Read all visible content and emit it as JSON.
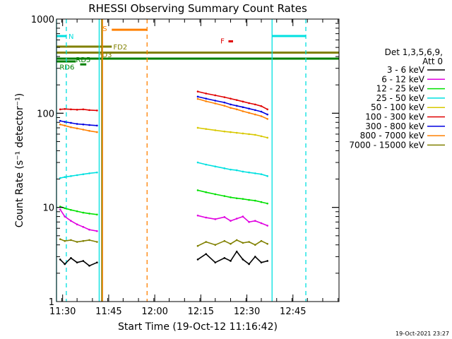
{
  "chart_data": {
    "type": "line",
    "title": "RHESSI Observing Summary Count Rates",
    "xlabel": "Start Time (19-Oct-12 11:16:42)",
    "ylabel": "Count Rate (s⁻¹ detector⁻¹)",
    "yscale": "log",
    "ylim": [
      1,
      1000
    ],
    "xlim_minutes": [
      11.3,
      103.3
    ],
    "x_ticks": [
      "11:30",
      "11:45",
      "12:00",
      "12:15",
      "12:30",
      "12:45"
    ],
    "x_tick_minutes": [
      13.3,
      28.3,
      43.3,
      58.3,
      73.3,
      88.3
    ],
    "y_ticks": [
      "1",
      "10",
      "100",
      "1000"
    ],
    "y_tick_values": [
      1,
      10,
      100,
      1000
    ],
    "grid": false,
    "legend_header": [
      "Det 1,3,5,6,9,",
      "Att 0"
    ],
    "legend_position": "right",
    "footer_date": "19-Oct-2021 23:27",
    "series": [
      {
        "name": "3 - 6 keV",
        "color": "#000000",
        "segments": [
          {
            "x": [
              12.5,
              14,
              16,
              18,
              20,
              22,
              24.5
            ],
            "y": [
              2.8,
              2.5,
              2.9,
              2.6,
              2.7,
              2.4,
              2.6
            ]
          },
          {
            "x": [
              57.3,
              60,
              63,
              66,
              68,
              70,
              72,
              74,
              76,
              78,
              80
            ],
            "y": [
              2.8,
              3.2,
              2.6,
              2.9,
              2.7,
              3.4,
              2.8,
              2.5,
              3.0,
              2.6,
              2.7
            ]
          }
        ]
      },
      {
        "name": "6 - 12 keV",
        "color": "#e000e0",
        "segments": [
          {
            "x": [
              12.5,
              14,
              16,
              18,
              20,
              22,
              24.5
            ],
            "y": [
              9.5,
              8.0,
              7.2,
              6.6,
              6.2,
              5.8,
              5.6
            ]
          },
          {
            "x": [
              57.3,
              60,
              63,
              66,
              68,
              70,
              72,
              74,
              76,
              78,
              80
            ],
            "y": [
              8.2,
              7.8,
              7.5,
              7.9,
              7.2,
              7.6,
              8.0,
              7.0,
              7.2,
              6.8,
              6.4
            ]
          }
        ]
      },
      {
        "name": "12 - 25 keV",
        "color": "#00e000",
        "segments": [
          {
            "x": [
              12.5,
              14,
              16,
              18,
              20,
              22,
              24.5
            ],
            "y": [
              10.2,
              9.8,
              9.4,
              9.1,
              8.8,
              8.6,
              8.4
            ]
          },
          {
            "x": [
              57.3,
              60,
              63,
              66,
              68,
              70,
              72,
              74,
              76,
              78,
              80
            ],
            "y": [
              15.2,
              14.5,
              13.8,
              13.2,
              12.8,
              12.5,
              12.3,
              12.0,
              11.8,
              11.4,
              11.0
            ]
          }
        ]
      },
      {
        "name": "25 - 50 keV",
        "color": "#00e0e0",
        "segments": [
          {
            "x": [
              12.5,
              14,
              16,
              18,
              20,
              22,
              24.5
            ],
            "y": [
              20.5,
              21.0,
              21.5,
              22.0,
              22.5,
              23.0,
              23.5
            ]
          },
          {
            "x": [
              57.3,
              60,
              63,
              66,
              68,
              70,
              72,
              74,
              76,
              78,
              80
            ],
            "y": [
              30.0,
              28.5,
              27.2,
              26.0,
              25.2,
              24.8,
              24.0,
              23.5,
              23.0,
              22.5,
              21.5
            ]
          }
        ]
      },
      {
        "name": "50 - 100 keV",
        "color": "#d8c800",
        "segments": [
          {
            "x": [
              57.3,
              60,
              63,
              66,
              68,
              70,
              72,
              74,
              76,
              78,
              80
            ],
            "y": [
              70.0,
              68.0,
              66.0,
              64.0,
              63.0,
              62.0,
              61.0,
              60.0,
              59.0,
              57.0,
              55.0
            ]
          }
        ]
      },
      {
        "name": "100 - 300 keV",
        "color": "#e00000",
        "segments": [
          {
            "x": [
              12.5,
              14,
              16,
              18,
              20,
              22,
              24.5
            ],
            "y": [
              110,
              111,
              110,
              109,
              110,
              108,
              107
            ]
          },
          {
            "x": [
              57.3,
              60,
              63,
              66,
              68,
              70,
              72,
              74,
              76,
              78,
              80
            ],
            "y": [
              170,
              162,
              155,
              148,
              143,
              138,
              133,
              128,
              124,
              119,
              110
            ]
          }
        ]
      },
      {
        "name": "300 - 800 keV",
        "color": "#0000e0",
        "segments": [
          {
            "x": [
              12.5,
              14,
              16,
              18,
              20,
              22,
              24.5
            ],
            "y": [
              83,
              81,
              79,
              77,
              76,
              75,
              74
            ]
          },
          {
            "x": [
              57.3,
              60,
              63,
              66,
              68,
              70,
              72,
              74,
              76,
              78,
              80
            ],
            "y": [
              150,
              143,
              136,
              130,
              124,
              120,
              116,
              112,
              108,
              104,
              97
            ]
          }
        ]
      },
      {
        "name": "800 - 7000 keV",
        "color": "#ff8000",
        "segments": [
          {
            "x": [
              12.5,
              14,
              16,
              18,
              20,
              22,
              24.5
            ],
            "y": [
              76,
              74,
              71,
              69,
              67,
              65,
              63
            ]
          },
          {
            "x": [
              57.3,
              60,
              63,
              66,
              68,
              70,
              72,
              74,
              76,
              78,
              80
            ],
            "y": [
              142,
              134,
              127,
              120,
              114,
              110,
              105,
              101,
              97,
              93,
              87
            ]
          }
        ]
      },
      {
        "name": "7000 - 15000 keV",
        "color": "#808000",
        "segments": [
          {
            "x": [
              12.5,
              14,
              16,
              18,
              20,
              22,
              24.5
            ],
            "y": [
              4.6,
              4.4,
              4.5,
              4.3,
              4.4,
              4.5,
              4.3
            ]
          },
          {
            "x": [
              57.3,
              60,
              63,
              66,
              68,
              70,
              72,
              74,
              76,
              78,
              80
            ],
            "y": [
              3.9,
              4.3,
              4.0,
              4.4,
              4.1,
              4.5,
              4.2,
              4.3,
              4.0,
              4.4,
              4.1
            ]
          }
        ]
      }
    ],
    "state_bars": [
      {
        "label": "N",
        "color": "#00e0e0",
        "x": [
          11.3,
          14.5
        ],
        "level": 660,
        "label_x": 15.2,
        "label_level": 660
      },
      {
        "label": "N",
        "color": "#00e0e0",
        "x": [
          81.5,
          92.5
        ],
        "level": 660
      },
      {
        "label": "S",
        "color": "#ff8000",
        "x": [
          29.3,
          40.8
        ],
        "level": 770,
        "label_x": 26.3,
        "label_level": 800
      },
      {
        "label": "FD2",
        "color": "#808000",
        "x": [
          11.3,
          29.3
        ],
        "level": 510,
        "label_x": 29.8,
        "label_level": 510
      },
      {
        "label": "FD3",
        "color": "#808000",
        "x": [
          11.3,
          103.3
        ],
        "level": 440,
        "label_x": 24.8,
        "label_level": 420
      },
      {
        "label": "RD5",
        "color": "#008000",
        "x": [
          11.3,
          103.3
        ],
        "level": 380,
        "label_x": 17.6,
        "label_level": 375
      },
      {
        "label": "RD6",
        "color": "#008000",
        "x": [
          11.3,
          17.6
        ],
        "level": 355,
        "label_x": 12.3,
        "label_level": 312
      },
      {
        "label": "RD6",
        "color": "#008000",
        "x": [
          19.0,
          21.0
        ],
        "level": 330
      },
      {
        "label": "F",
        "color": "#e00000",
        "x": [
          67.3,
          68.8
        ],
        "level": 580,
        "label_x": 64.7,
        "label_level": 590
      }
    ],
    "vlines": [
      {
        "x": 11.3,
        "color": "#00e0e0",
        "style": "solid"
      },
      {
        "x": 14.5,
        "color": "#00e0e0",
        "style": "dashed"
      },
      {
        "x": 25.2,
        "color": "#00e0e0",
        "style": "solid"
      },
      {
        "x": 26.0,
        "color": "#808000",
        "style": "solid"
      },
      {
        "x": 26.3,
        "color": "#ff8000",
        "style": "solid"
      },
      {
        "x": 40.8,
        "color": "#ff8000",
        "style": "dashed"
      },
      {
        "x": 81.5,
        "color": "#00e0e0",
        "style": "solid"
      },
      {
        "x": 92.5,
        "color": "#00e0e0",
        "style": "dashed"
      }
    ]
  }
}
